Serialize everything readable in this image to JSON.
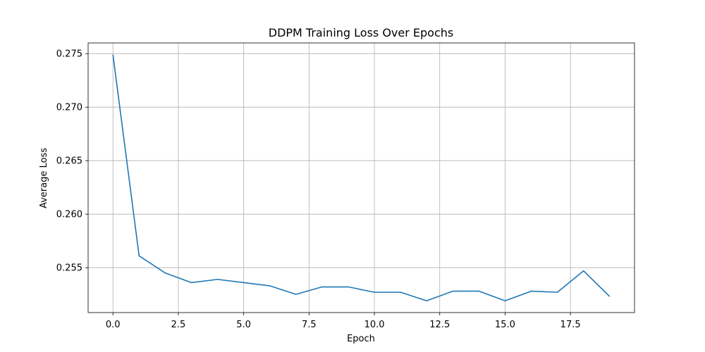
{
  "chart_data": {
    "type": "line",
    "title": "DDPM Training Loss Over Epochs",
    "xlabel": "Epoch",
    "ylabel": "Average Loss",
    "xlim": [
      -0.95,
      19.95
    ],
    "ylim": [
      0.2508,
      0.276
    ],
    "grid": true,
    "x_ticks": [
      0.0,
      2.5,
      5.0,
      7.5,
      10.0,
      12.5,
      15.0,
      17.5
    ],
    "x_tick_labels": [
      "0.0",
      "2.5",
      "5.0",
      "7.5",
      "10.0",
      "12.5",
      "15.0",
      "17.5"
    ],
    "y_ticks": [
      0.255,
      0.26,
      0.265,
      0.27,
      0.275
    ],
    "y_tick_labels": [
      "0.255",
      "0.260",
      "0.265",
      "0.270",
      "0.275"
    ],
    "series": [
      {
        "color": "#1f77b4",
        "x": [
          0,
          1,
          2,
          3,
          4,
          5,
          6,
          7,
          8,
          9,
          10,
          11,
          12,
          13,
          14,
          15,
          16,
          17,
          18,
          19
        ],
        "y": [
          0.2749,
          0.2561,
          0.2545,
          0.2536,
          0.2539,
          0.2536,
          0.2533,
          0.2525,
          0.2532,
          0.2532,
          0.2527,
          0.2527,
          0.2519,
          0.2528,
          0.2528,
          0.2519,
          0.2528,
          0.2527,
          0.2547,
          0.2523
        ]
      }
    ]
  }
}
